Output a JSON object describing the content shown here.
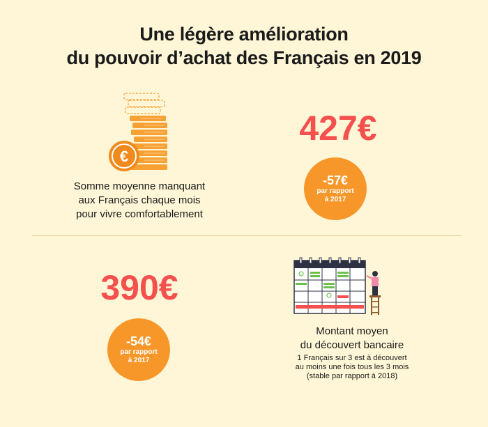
{
  "title": {
    "line1": "Une légère amélioration",
    "line2": "du pouvoir d’achat des Français en 2019"
  },
  "section1": {
    "description_line1": "Somme moyenne manquant",
    "description_line2": "aux Français chaque mois",
    "description_line3": "pour vivre comfortablement",
    "amount": "427€",
    "badge": {
      "value": "-57€",
      "line1": "par rapport",
      "line2": "à 2017"
    },
    "icon": "euro-coin-stack-icon"
  },
  "section2": {
    "amount": "390€",
    "badge": {
      "value": "-54€",
      "line1": "par rapport",
      "line2": "à 2017"
    },
    "title_line1": "Montant moyen",
    "title_line2": "du découvert bancaire",
    "note_line1": "1 Français sur 3 est à découvert",
    "note_line2": "au moins une fois tous les 3 mois",
    "note_line3": "(stable par rapport à 2018)",
    "icon": "calendar-person-icon"
  },
  "colors": {
    "background": "#fef6d6",
    "accent_red": "#f4504e",
    "accent_orange": "#f7972a"
  }
}
